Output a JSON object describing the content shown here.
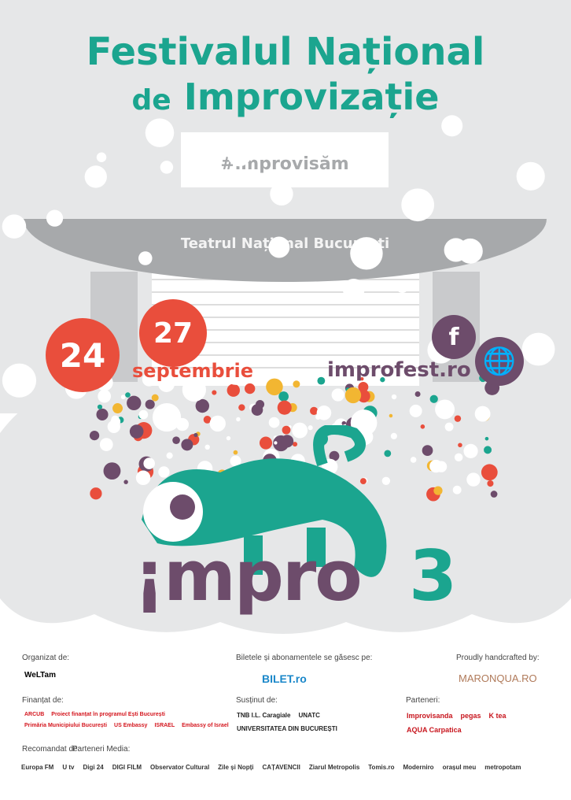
{
  "title_line1": "Festivalul Național",
  "title_de": "de",
  "title_line2": "Improvizație",
  "hashtag": "#improvisăm",
  "venue": "Teatrul Național București",
  "date_start": "24",
  "date_end": "27",
  "month": "septembrie",
  "facebook_icon": "f",
  "globe_icon": "🌐",
  "website": "improfest.ro",
  "logo_text": "¡mpro",
  "edition": "3",
  "colors": {
    "teal": "#1ba58f",
    "purple": "#6d4c6b",
    "red": "#e94e3c",
    "gray": "#a7a9ab"
  },
  "sponsors": {
    "organizat_label": "Organizat de:",
    "organizat": [
      "WeLTam"
    ],
    "bilete_label": "Biletele și abonamentele se găsesc pe:",
    "bilete": [
      "BILET.ro"
    ],
    "handcrafted_label": "Proudly handcrafted by:",
    "handcrafted": [
      "MARONQUA.RO"
    ],
    "finantat_label": "Finanțat de:",
    "finantat": [
      "ARCUB",
      "Proiect finanțat în programul Ești București",
      "Primăria Municipiului București",
      "US Embassy",
      "ISRAEL",
      "Embassy of Israel"
    ],
    "sustinut_label": "Susținut de:",
    "sustinut": [
      "TNB I.L. Caragiale",
      "UNATC",
      "UNIVERSITATEA DIN BUCUREȘTI"
    ],
    "parteneri_label": "Parteneri:",
    "parteneri": [
      "Improvisanda",
      "pegas",
      "K tea",
      "AQUA Carpatica"
    ],
    "recomandat_label": "Recomandat de:",
    "media_label": "Parteneri Media:",
    "media": [
      "Europa FM",
      "U tv",
      "Digi 24",
      "DIGI FILM",
      "Observator Cultural",
      "Zile și Nopți",
      "CAȚAVENCII",
      "Ziarul Metropolis",
      "Tomis.ro",
      "Moderniro",
      "orașul meu",
      "metropotam"
    ]
  }
}
